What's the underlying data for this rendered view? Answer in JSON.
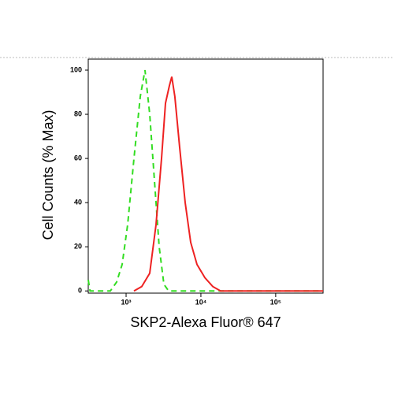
{
  "chart_data": {
    "type": "line",
    "xlabel": "SKP2-Alexa Fluor® 647",
    "ylabel": "Cell Counts (% Max)",
    "xscale": "log",
    "xlim": [
      312,
      430000
    ],
    "ylim": [
      -1,
      105
    ],
    "xticks": [
      {
        "value": 1000,
        "label": "10³"
      },
      {
        "value": 10000,
        "label": "10⁴"
      },
      {
        "value": 100000,
        "label": "10⁵"
      }
    ],
    "yticks": [
      0,
      20,
      40,
      60,
      80,
      100
    ],
    "series": [
      {
        "color": "#33dd22",
        "dash": true,
        "x": [
          312,
          330,
          616,
          748,
          886,
          1050,
          1274,
          1546,
          1790,
          2070,
          2393,
          2766,
          3200,
          3700,
          430000
        ],
        "values": [
          5,
          0,
          0,
          4,
          12,
          30,
          60,
          88,
          100,
          80,
          50,
          20,
          3,
          0,
          0
        ]
      },
      {
        "color": "#ee2222",
        "dash": false,
        "x": [
          1274,
          1620,
          2070,
          2510,
          2977,
          3360,
          3792,
          4077,
          4490,
          5200,
          6160,
          7300,
          8880,
          11300,
          14400,
          18300,
          430000
        ],
        "values": [
          0,
          2,
          8,
          30,
          60,
          85,
          93,
          97,
          88,
          65,
          40,
          22,
          12,
          6,
          2,
          0,
          0
        ]
      }
    ]
  }
}
